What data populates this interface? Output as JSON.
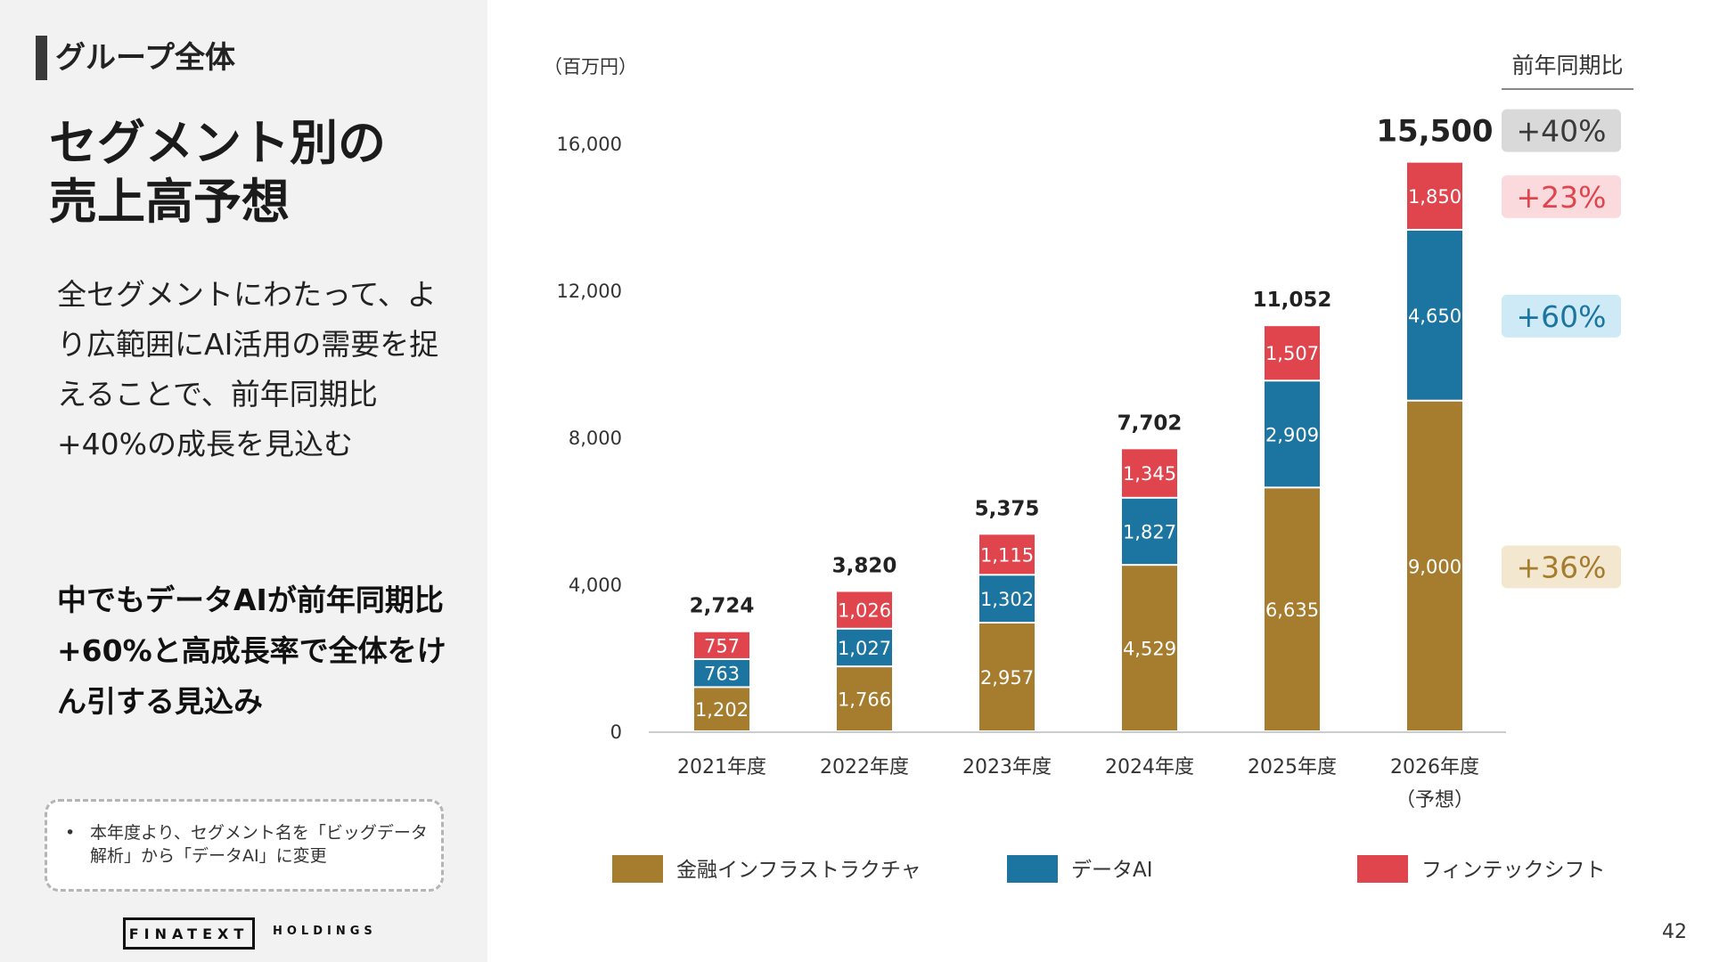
{
  "section_label": "グループ全体",
  "title_lines": [
    "セグメント別の",
    "売上高予想"
  ],
  "body_text": "全セグメントにわたって、より広範囲にAI活用の需要を捉えることで、前年同期比+40%の成長を見込む",
  "highlight_text": "中でもデータAIが前年同期比+60%と高成長率で全体をけん引する見込み",
  "note": {
    "bullet": "•",
    "text": "本年度より、セグメント名を「ビッグデータ解析」から「データAI」に変更"
  },
  "logo": {
    "main": "FINATEXT",
    "sub": "HOLDINGS"
  },
  "page_number": "42",
  "colors": {
    "infra": "#a67c2e",
    "dataai": "#1b75a0",
    "fintech": "#e0454e",
    "panel_bg": "#f2f2f2"
  },
  "chart_data": {
    "type": "bar",
    "stacked": true,
    "unit_label": "（百万円）",
    "yoy_header": "前年同期比",
    "categories": [
      "2021年度",
      "2022年度",
      "2023年度",
      "2024年度",
      "2025年度",
      "2026年度\n（予想）"
    ],
    "series": [
      {
        "name": "金融インフラストラクチャ",
        "color": "#a67c2e",
        "values": [
          1202,
          1766,
          2957,
          4529,
          6635,
          9000
        ]
      },
      {
        "name": "データAI",
        "color": "#1b75a0",
        "values": [
          763,
          1027,
          1302,
          1827,
          2909,
          4650
        ]
      },
      {
        "name": "フィンテックシフト",
        "color": "#e0454e",
        "values": [
          757,
          1026,
          1115,
          1345,
          1507,
          1850
        ]
      }
    ],
    "totals": [
      2724,
      3820,
      5375,
      7702,
      11052,
      15500
    ],
    "yoy": [
      {
        "label": "+40%",
        "target": "total",
        "bg": "#d9d9d9",
        "fg": "#3a3a3a"
      },
      {
        "label": "+23%",
        "target": "フィンテックシフト",
        "bg": "#fadadd",
        "fg": "#e0454e"
      },
      {
        "label": "+60%",
        "target": "データAI",
        "bg": "#cdeaf6",
        "fg": "#1b75a0"
      },
      {
        "label": "+36%",
        "target": "金融インフラストラクチャ",
        "bg": "#f3e7cf",
        "fg": "#a67c2e"
      }
    ],
    "yticks": [
      0,
      4000,
      8000,
      12000,
      16000
    ],
    "ylim": [
      0,
      16000
    ],
    "legend_position": "bottom",
    "grid": false
  }
}
